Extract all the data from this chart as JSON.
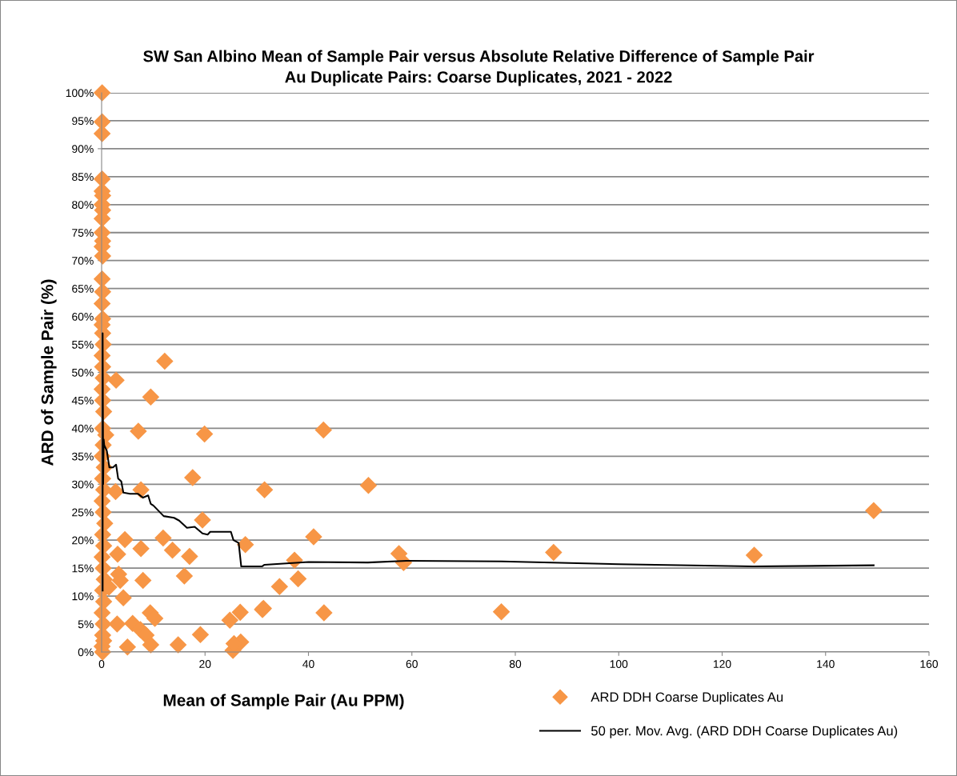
{
  "chart_data": {
    "type": "scatter",
    "title": "SW San Albino Mean of Sample Pair versus Absolute Relative Difference of Sample Pair",
    "subtitle": "Au Duplicate Pairs: Coarse Duplicates, 2021 - 2022",
    "xlabel": "Mean of Sample Pair (Au PPM)",
    "ylabel": "ARD of Sample Pair (%)",
    "xlim": [
      0,
      160
    ],
    "xticks": [
      0,
      20,
      40,
      60,
      80,
      100,
      120,
      140,
      160
    ],
    "ylim": [
      0,
      100
    ],
    "yticks": [
      {
        "value": 0,
        "label": "0%"
      },
      {
        "value": 5,
        "label": "5%"
      },
      {
        "value": 10,
        "label": "10%"
      },
      {
        "value": 15,
        "label": "15%"
      },
      {
        "value": 20,
        "label": "20%"
      },
      {
        "value": 25,
        "label": "25%"
      },
      {
        "value": 30,
        "label": "30%"
      },
      {
        "value": 35,
        "label": "35%"
      },
      {
        "value": 40,
        "label": "40%"
      },
      {
        "value": 45,
        "label": "45%"
      },
      {
        "value": 50,
        "label": "50%"
      },
      {
        "value": 55,
        "label": "55%"
      },
      {
        "value": 60,
        "label": "60%"
      },
      {
        "value": 65,
        "label": "65%"
      },
      {
        "value": 70,
        "label": "70%"
      },
      {
        "value": 75,
        "label": "75%"
      },
      {
        "value": 80,
        "label": "80%"
      },
      {
        "value": 85,
        "label": "85%"
      },
      {
        "value": 90,
        "label": "90%"
      },
      {
        "value": 95,
        "label": "95%"
      },
      {
        "value": 100,
        "label": "100%"
      }
    ],
    "grid": "y",
    "legend": "bottom right",
    "series": [
      {
        "name": "ARD DDH Coarse Duplicates Au",
        "marker": "diamond",
        "color": "#f79646",
        "x": [
          0.1,
          0.1,
          0.1,
          0.1,
          0.1,
          0.2,
          0.1,
          0.2,
          0.1,
          0.1,
          0.2,
          0.1,
          0.2,
          0.1,
          0.2,
          0.1,
          0.2,
          0.1,
          0.2,
          0.3,
          0.1,
          0.2,
          0.3,
          0.1,
          0.2,
          0.4,
          0.2,
          0.8,
          0.3,
          0.1,
          0.5,
          0.2,
          0.4,
          0.1,
          0.3,
          0.6,
          0.2,
          0.4,
          0.1,
          0.3,
          0.5,
          0.2,
          0.4,
          0.1,
          0.3,
          0.2,
          0.4,
          0.1,
          0.2,
          12.2,
          2.8,
          9.5,
          7.1,
          19.9,
          42.9,
          17.6,
          51.6,
          7.6,
          31.5,
          2.7,
          149.3,
          19.5,
          41,
          4.5,
          11.9,
          27.8,
          7.6,
          13.7,
          3.1,
          17,
          87.4,
          57.5,
          126.2,
          37.3,
          58.4,
          16,
          3.3,
          38,
          3.6,
          8,
          34.4,
          1.4,
          4.2,
          9.4,
          77.3,
          43,
          10.3,
          31.1,
          31.3,
          26.8,
          24.8,
          3,
          6,
          7.5,
          8.6,
          19.1,
          14.8,
          9.5,
          5,
          25.4,
          26.9,
          25.6
        ],
        "values": [
          100,
          94.8,
          92.7,
          84.6,
          82.4,
          81.6,
          80,
          79,
          77.5,
          75,
          73.5,
          72.5,
          70.8,
          66.7,
          64.4,
          62.3,
          59.6,
          58.5,
          57,
          55,
          53,
          51,
          49,
          47,
          45,
          43,
          40,
          38.8,
          37,
          35,
          33,
          31,
          29,
          27,
          25,
          23,
          21,
          19,
          17,
          15,
          13,
          11,
          9,
          7,
          5,
          3,
          2,
          1,
          0,
          52,
          48.6,
          45.6,
          39.5,
          39,
          39.7,
          31.2,
          29.8,
          29,
          29,
          28.7,
          25.3,
          23.6,
          20.6,
          20.1,
          20.4,
          19.2,
          18.5,
          18.2,
          17.5,
          17.1,
          17.8,
          17.6,
          17.3,
          16.4,
          16,
          13.6,
          13.9,
          13.1,
          12.8,
          12.8,
          11.7,
          11.6,
          9.7,
          7,
          7.2,
          7,
          6,
          7.6,
          7.8,
          7.1,
          5.7,
          5,
          5.1,
          4,
          3,
          3.1,
          1.3,
          1.3,
          0.9,
          0.3,
          1.8,
          1.5
        ]
      },
      {
        "name": "50 per. Mov. Avg. (ARD DDH Coarse Duplicates Au)",
        "type": "line",
        "line_style": "solid",
        "color": "#000000",
        "x": [
          0.2,
          0.2,
          0.3,
          0.4,
          0.5,
          1,
          1.5,
          2.2,
          2.8,
          3.2,
          3.8,
          4.2,
          5.5,
          7,
          8,
          9,
          9.5,
          10,
          12,
          14,
          15,
          16.5,
          18,
          19.5,
          20.5,
          21,
          25,
          25.5,
          26.5,
          27,
          31,
          31.5,
          40,
          51.5,
          59,
          77.3,
          100,
          126,
          149.3
        ],
        "values": [
          11,
          57,
          30,
          38,
          37,
          36,
          33,
          33,
          33.5,
          31,
          30.5,
          28.5,
          28.3,
          28.3,
          27.6,
          28,
          26.5,
          26.2,
          24.3,
          24,
          23.5,
          22.2,
          22.4,
          21.2,
          21,
          21.5,
          21.5,
          20,
          19.5,
          15.3,
          15.3,
          15.6,
          16.1,
          16,
          16.3,
          16.2,
          15.7,
          15.3,
          15.5
        ]
      }
    ]
  }
}
